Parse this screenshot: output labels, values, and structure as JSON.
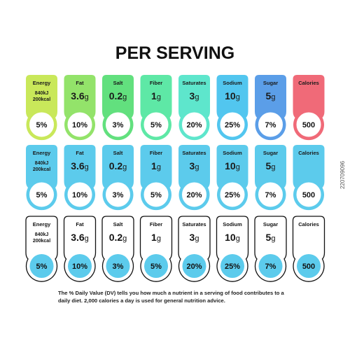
{
  "title": "PER SERVING",
  "items": [
    {
      "name": "Energy",
      "lines": [
        "840kJ",
        "200kcal"
      ],
      "dv": "5%"
    },
    {
      "name": "Fat",
      "value": "3.6",
      "unit": "g",
      "dv": "10%"
    },
    {
      "name": "Salt",
      "value": "0.2",
      "unit": "g",
      "dv": "3%"
    },
    {
      "name": "Fiber",
      "value": "1",
      "unit": "g",
      "dv": "5%"
    },
    {
      "name": "Saturates",
      "value": "3",
      "unit": "g",
      "dv": "20%"
    },
    {
      "name": "Sodium",
      "value": "10",
      "unit": "g",
      "dv": "25%"
    },
    {
      "name": "Sugar",
      "value": "5",
      "unit": "g",
      "dv": "7%"
    },
    {
      "name": "Calories",
      "dv": "500"
    }
  ],
  "footnote": [
    "The % Daily Value (DV) tells you how much a nutrient in a serving of food contributes to a",
    "daily diet. 2,000 calories a day is used for general nutrition advice."
  ],
  "stock_id": "220709096"
}
